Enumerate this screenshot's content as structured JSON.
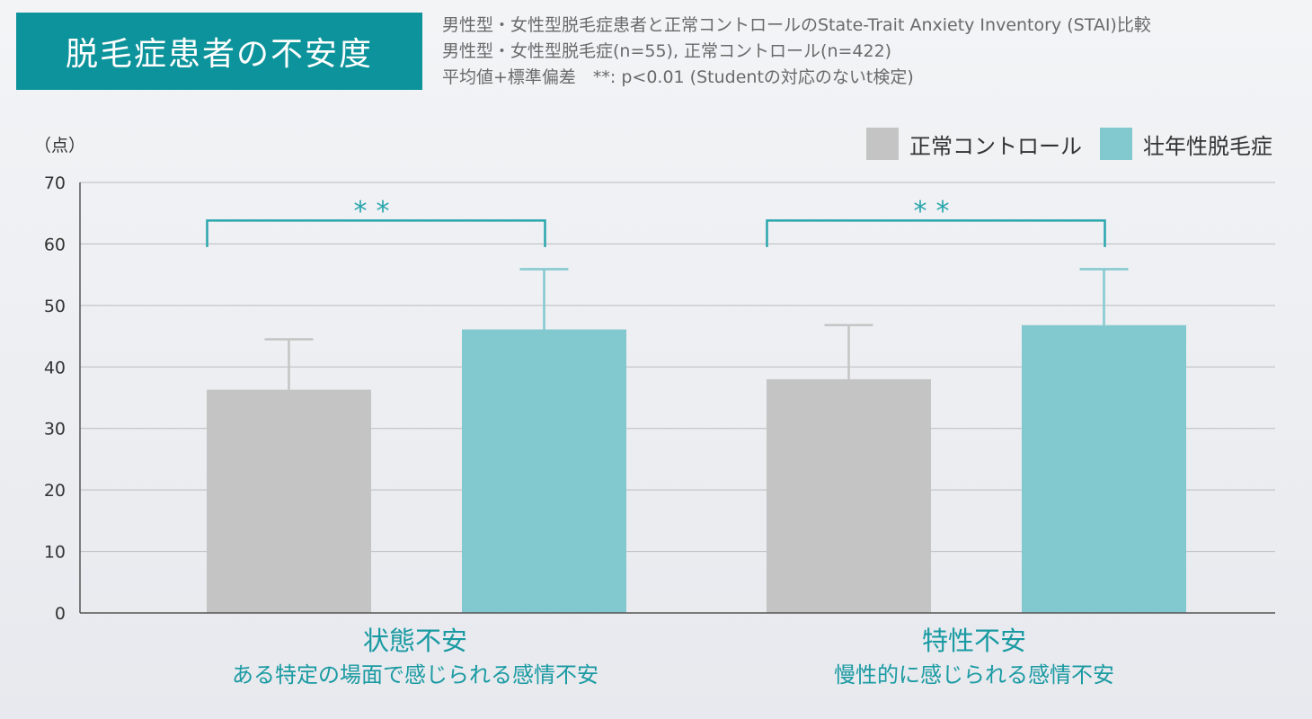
{
  "header": {
    "title": "脱毛症患者の不安度",
    "subtitle_lines": [
      "男性型・女性型脱毛症患者と正常コントロールのState-Trait Anxiety Inventory (STAI)比較",
      "男性型・女性型脱毛症(n=55), 正常コントロール(n=422)",
      "平均値+標準偏差　**: p<0.01 (Studentの対応のないt検定)"
    ]
  },
  "chart_data": {
    "type": "bar",
    "y_unit_label": "（点）",
    "ylim": [
      0,
      70
    ],
    "yticks": [
      0,
      10,
      20,
      30,
      40,
      50,
      60,
      70
    ],
    "grid": true,
    "legend_placement": "top-right",
    "categories": [
      {
        "label": "状態不安",
        "sublabel": "ある特定の場面で感じられる感情不安"
      },
      {
        "label": "特性不安",
        "sublabel": "慢性的に感じられる感情不安"
      }
    ],
    "series": [
      {
        "name": "正常コントロール",
        "color": "#c4c4c4",
        "errcolor": "#c4c4c4",
        "values": [
          36.3,
          38.0
        ],
        "errors": [
          8.2,
          8.8
        ]
      },
      {
        "name": "壮年性脱毛症",
        "color": "#82c8cf",
        "errcolor": "#82c8cf",
        "values": [
          46.1,
          46.8
        ],
        "errors": [
          9.8,
          9.1
        ]
      }
    ],
    "significance": [
      {
        "category_index": 0,
        "label": "**"
      },
      {
        "category_index": 1,
        "label": "**"
      }
    ],
    "colors": {
      "significance": "#2aa6ad",
      "axis": "#555555",
      "grid": "#b9bcc0"
    }
  }
}
